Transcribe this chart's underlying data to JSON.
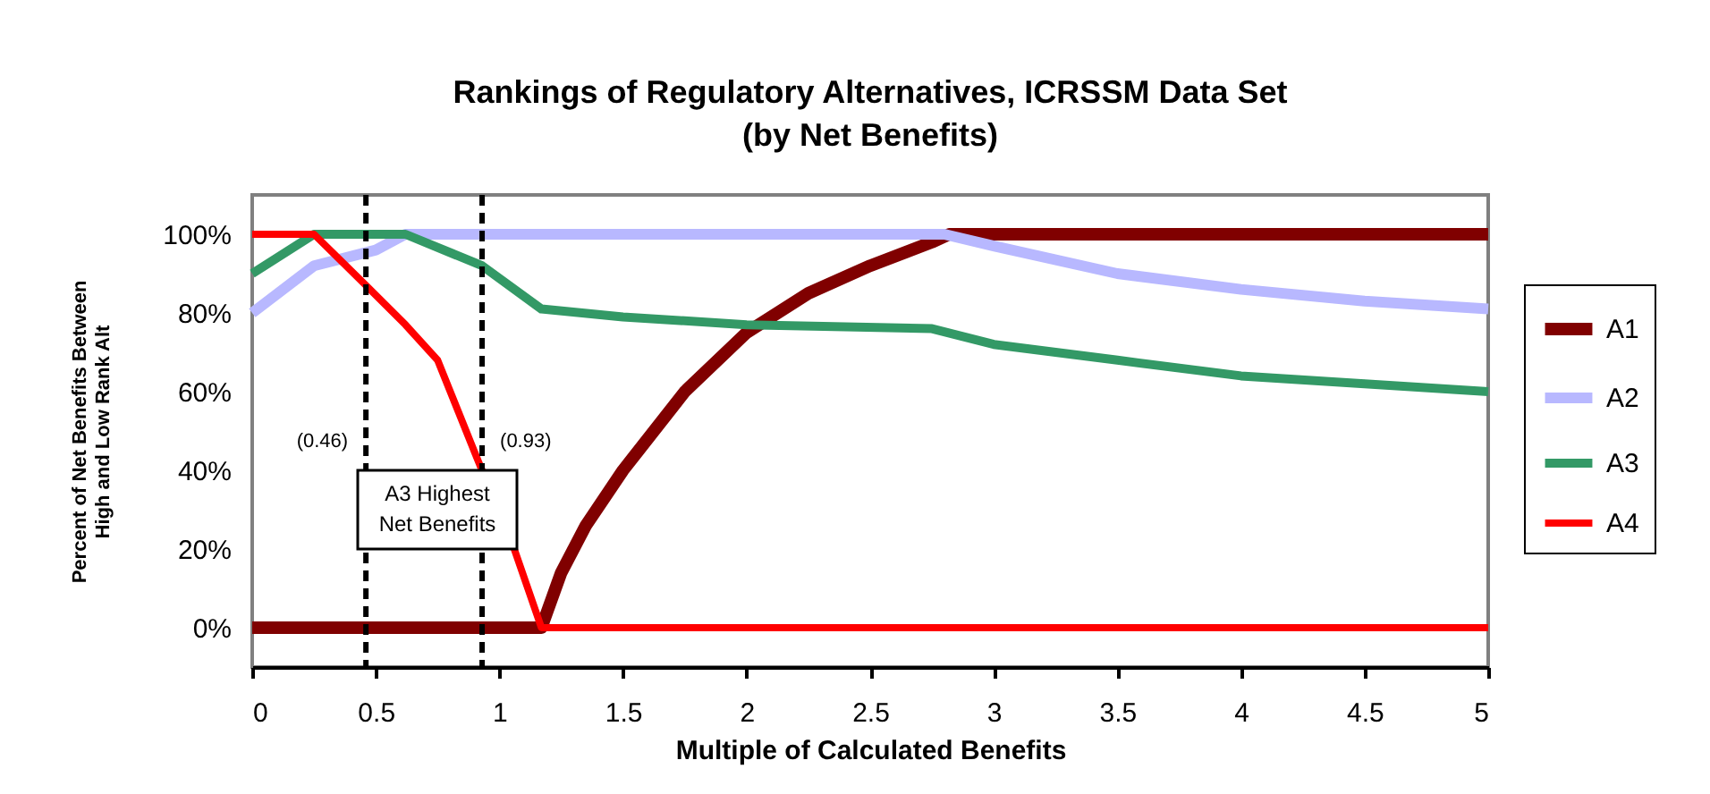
{
  "chart_data": {
    "type": "line",
    "title": "Rankings of Regulatory Alternatives, ICRSSM Data Set\n(by Net Benefits)",
    "xlabel": "Multiple of Calculated Benefits",
    "ylabel": "Percent of Net Benefits Between\nHigh and Low Rank Alt",
    "xlim": [
      0,
      5
    ],
    "xticks": [
      0,
      0.5,
      1,
      1.5,
      2,
      2.5,
      3,
      3.5,
      4,
      4.5,
      5
    ],
    "ylim": [
      -10,
      110
    ],
    "yticks": [
      {
        "value": 0,
        "label": "0%"
      },
      {
        "value": 20,
        "label": "20%"
      },
      {
        "value": 40,
        "label": "40%"
      },
      {
        "value": 60,
        "label": "60%"
      },
      {
        "value": 80,
        "label": "80%"
      },
      {
        "value": 100,
        "label": "100%"
      }
    ],
    "grid": false,
    "legend": "right",
    "marker": "none",
    "line_style": "solid",
    "series": [
      {
        "name": "A1",
        "color": "#800000",
        "x": [
          0,
          1.17,
          1.25,
          1.35,
          1.5,
          1.75,
          2,
          2.25,
          2.5,
          2.75,
          2.82,
          5
        ],
        "values": [
          0,
          0,
          14,
          26,
          40,
          60,
          75,
          85,
          92,
          98,
          100,
          100
        ]
      },
      {
        "name": "A2",
        "color": "#b8b8ff",
        "x": [
          0,
          0.25,
          0.5,
          0.62,
          2.8,
          3,
          3.5,
          4,
          4.5,
          5
        ],
        "values": [
          80,
          92,
          96,
          100,
          100,
          97,
          90,
          86,
          83,
          81
        ]
      },
      {
        "name": "A3",
        "color": "#339966",
        "x": [
          0,
          0.25,
          0.62,
          0.93,
          1.17,
          1.5,
          2,
          2.75,
          3,
          3.5,
          4,
          4.5,
          5
        ],
        "values": [
          90,
          100,
          100,
          92,
          81,
          79,
          77,
          76,
          72,
          68,
          64,
          62,
          60
        ]
      },
      {
        "name": "A4",
        "color": "#ff0000",
        "x": [
          0,
          0.25,
          0.46,
          0.62,
          0.75,
          0.91,
          1.06,
          1.17,
          5
        ],
        "values": [
          100,
          100,
          87,
          77,
          68,
          43,
          20,
          0,
          0
        ]
      }
    ],
    "ref_lines": [
      {
        "axis": "x",
        "value": 0.46,
        "label": "(0.46)",
        "color": "#000000",
        "line_style": "dashed"
      },
      {
        "axis": "x",
        "value": 0.93,
        "label": "(0.93)",
        "color": "#000000",
        "line_style": "dashed"
      }
    ],
    "annotations": [
      "A3 Highest Net Benefits"
    ]
  }
}
